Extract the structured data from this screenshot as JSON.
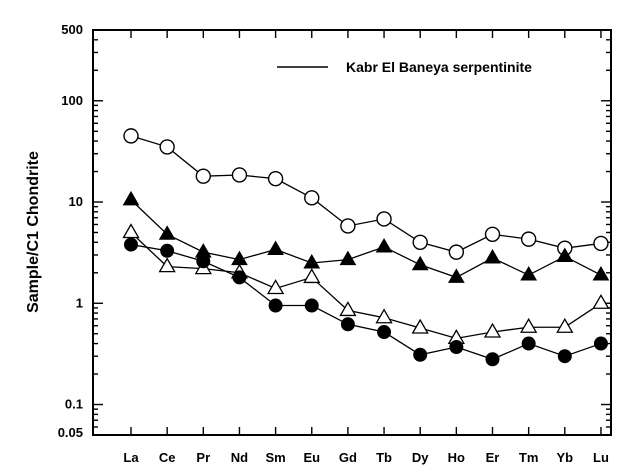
{
  "chart_data": {
    "type": "line",
    "title": "",
    "xlabel": "",
    "ylabel": "Sample/C1 Chondrite",
    "yscale": "log",
    "ylim": [
      0.05,
      500
    ],
    "grid": false,
    "legend": {
      "position": "top-right",
      "label": "Kabr El Baneya serpentinite"
    },
    "categories": [
      "La",
      "Ce",
      "Pr",
      "Nd",
      "Sm",
      "Eu",
      "Gd",
      "Tb",
      "Dy",
      "Ho",
      "Er",
      "Tm",
      "Yb",
      "Lu"
    ],
    "y_ticks": [
      {
        "value": 500,
        "label": "500"
      },
      {
        "value": 100,
        "label": "100"
      },
      {
        "value": 10,
        "label": "10"
      },
      {
        "value": 1,
        "label": "1"
      },
      {
        "value": 0.1,
        "label": "0.1"
      },
      {
        "value": 0.05,
        "label": "0.05"
      }
    ],
    "series": [
      {
        "marker": "open-circle",
        "values": [
          45,
          35,
          18,
          18.5,
          17,
          11,
          5.8,
          6.8,
          4.0,
          3.2,
          4.8,
          4.3,
          3.5,
          3.9
        ]
      },
      {
        "marker": "filled-triangle",
        "values": [
          10.5,
          4.8,
          3.2,
          2.7,
          3.4,
          2.5,
          2.7,
          3.6,
          2.4,
          1.8,
          2.8,
          1.9,
          2.9,
          1.9
        ]
      },
      {
        "marker": "open-triangle",
        "values": [
          5.0,
          2.3,
          2.2,
          2.0,
          1.4,
          1.8,
          0.85,
          0.72,
          0.57,
          0.45,
          0.52,
          0.58,
          0.58,
          1.0
        ]
      },
      {
        "marker": "filled-circle",
        "values": [
          3.8,
          3.3,
          2.6,
          1.8,
          0.95,
          0.95,
          0.62,
          0.52,
          0.31,
          0.37,
          0.28,
          0.4,
          0.3,
          0.4
        ]
      }
    ]
  }
}
